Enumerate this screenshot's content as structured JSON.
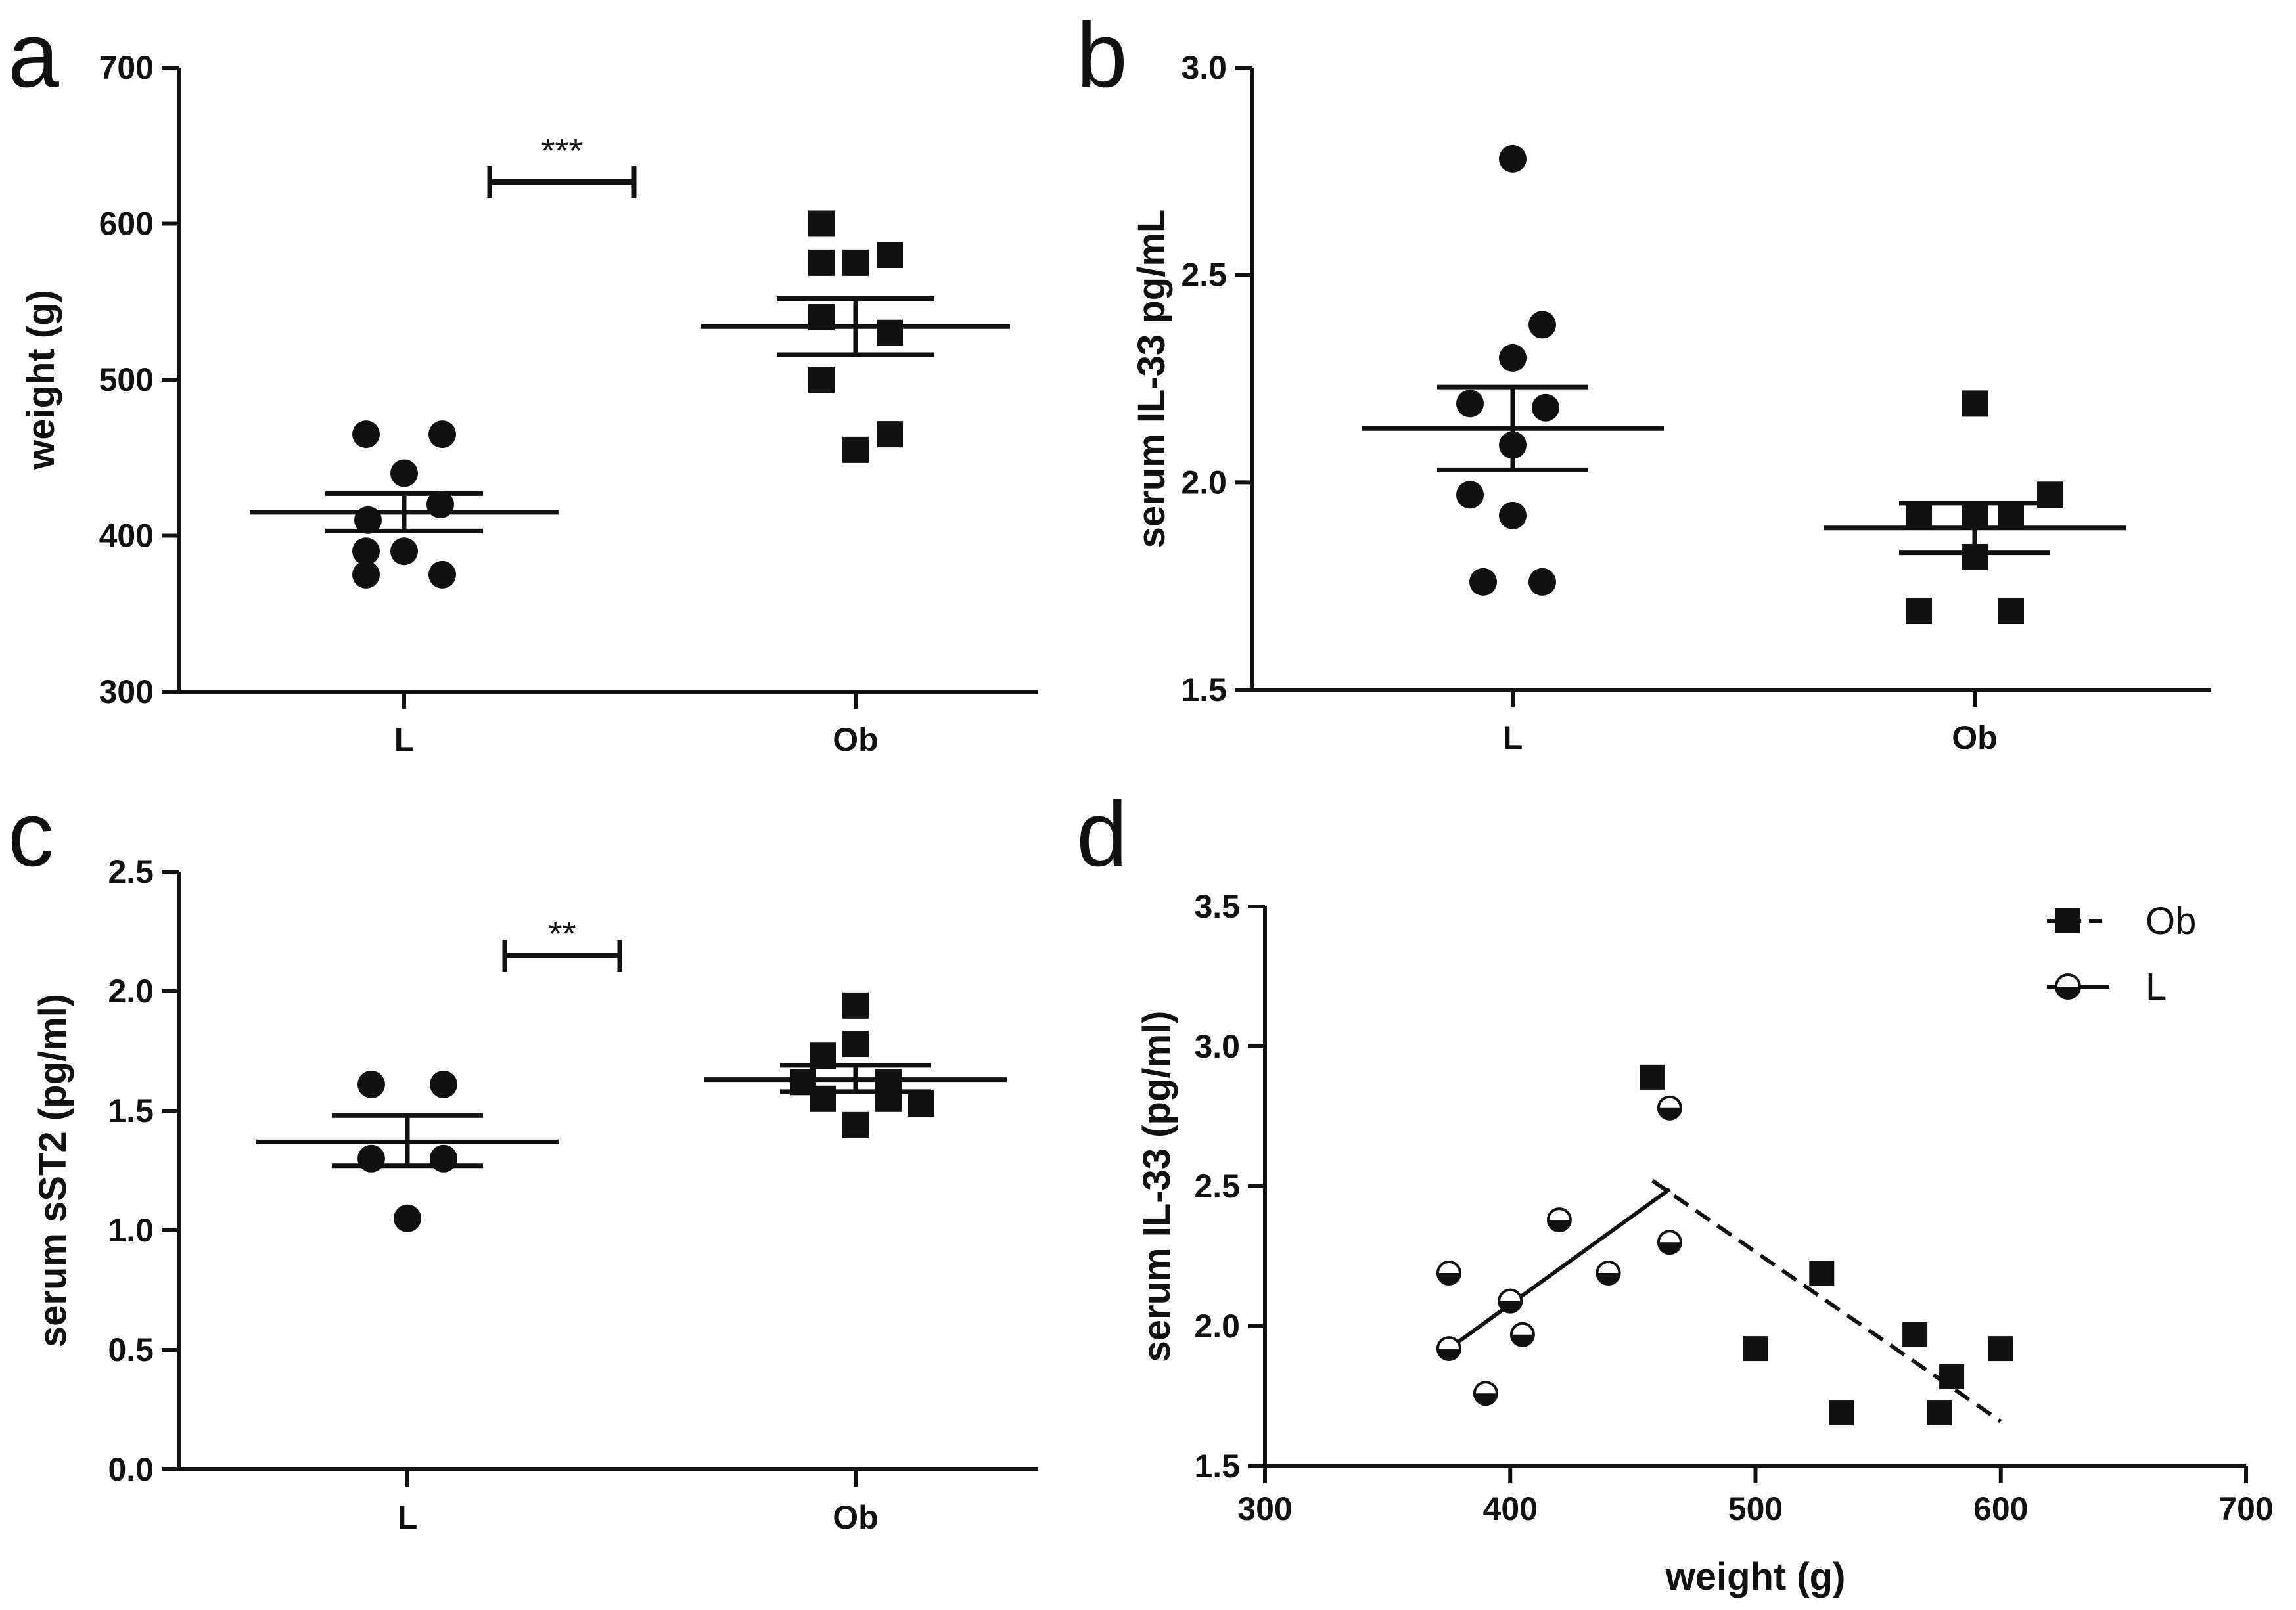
{
  "panels": {
    "a": "a",
    "b": "b",
    "c": "c",
    "d": "d"
  },
  "chart_data": [
    {
      "id": "a",
      "type": "scatter",
      "ylabel": "weight (g)",
      "ylim": [
        300,
        700
      ],
      "yticks": [
        300,
        400,
        500,
        600,
        700
      ],
      "categories": [
        "L",
        "Ob"
      ],
      "series": [
        {
          "category": "L",
          "marker": "circle",
          "values": [
            465,
            465,
            440,
            420,
            410,
            390,
            390,
            375,
            375
          ],
          "mean": 415,
          "sem": [
            403,
            427
          ]
        },
        {
          "category": "Ob",
          "marker": "square",
          "values": [
            600,
            580,
            575,
            575,
            540,
            530,
            500,
            465,
            455
          ],
          "mean": 534,
          "sem": [
            516,
            552
          ]
        }
      ],
      "significance": {
        "label": "***",
        "between": [
          "L",
          "Ob"
        ]
      }
    },
    {
      "id": "b",
      "type": "scatter",
      "ylabel": "serum IL-33 pg/mL",
      "ylim": [
        1.5,
        3.0
      ],
      "yticks": [
        "1.5",
        "2.0",
        "2.5",
        "3.0"
      ],
      "categories": [
        "L",
        "Ob"
      ],
      "series": [
        {
          "category": "L",
          "marker": "circle",
          "values": [
            2.78,
            2.38,
            2.3,
            2.19,
            2.18,
            2.09,
            1.97,
            1.92,
            1.76,
            1.76
          ],
          "mean": 2.13,
          "sem": [
            2.03,
            2.23
          ]
        },
        {
          "category": "Ob",
          "marker": "square",
          "values": [
            2.19,
            1.97,
            1.92,
            1.92,
            1.92,
            1.82,
            1.69,
            1.69
          ],
          "mean": 1.89,
          "sem": [
            1.83,
            1.95
          ]
        }
      ]
    },
    {
      "id": "c",
      "type": "scatter",
      "ylabel": "serum sST2 (pg/ml)",
      "ylim": [
        0,
        2.5
      ],
      "yticks": [
        "0.0",
        "0.5",
        "1.0",
        "1.5",
        "2.0",
        "2.5"
      ],
      "categories": [
        "L",
        "Ob"
      ],
      "series": [
        {
          "category": "L",
          "marker": "circle",
          "values": [
            1.61,
            1.61,
            1.3,
            1.3,
            1.05
          ],
          "mean": 1.37,
          "sem": [
            1.27,
            1.48
          ]
        },
        {
          "category": "Ob",
          "marker": "square",
          "values": [
            1.94,
            1.78,
            1.73,
            1.62,
            1.62,
            1.55,
            1.55,
            1.53,
            1.44
          ],
          "mean": 1.63,
          "sem": [
            1.58,
            1.69
          ]
        }
      ],
      "significance": {
        "label": "**",
        "between": [
          "L",
          "Ob"
        ]
      }
    },
    {
      "id": "d",
      "type": "scatter",
      "xlabel": "weight (g)",
      "ylabel": "serum IL-33 (pg/ml)",
      "xlim": [
        300,
        700
      ],
      "ylim": [
        1.5,
        3.5
      ],
      "xticks": [
        300,
        400,
        500,
        600,
        700
      ],
      "yticks": [
        "1.5",
        "2.0",
        "2.5",
        "3.0",
        "3.5"
      ],
      "legend": {
        "position": "top-right"
      },
      "series": [
        {
          "name": "Ob",
          "marker": "square",
          "line": "dashed",
          "points": [
            [
              458,
              2.89
            ],
            [
              500,
              1.92
            ],
            [
              527,
              2.19
            ],
            [
              535,
              1.69
            ],
            [
              565,
              1.97
            ],
            [
              575,
              1.69
            ],
            [
              580,
              1.82
            ],
            [
              600,
              1.92
            ]
          ],
          "fit": [
            [
              458,
              2.52
            ],
            [
              600,
              1.66
            ]
          ]
        },
        {
          "name": "L",
          "marker": "half-circle",
          "line": "solid",
          "points": [
            [
              375,
              2.19
            ],
            [
              375,
              1.92
            ],
            [
              390,
              1.76
            ],
            [
              400,
              2.09
            ],
            [
              405,
              1.97
            ],
            [
              420,
              2.38
            ],
            [
              440,
              2.19
            ],
            [
              465,
              2.78
            ],
            [
              465,
              2.3
            ]
          ],
          "fit": [
            [
              375,
              1.92
            ],
            [
              465,
              2.49
            ]
          ]
        }
      ]
    }
  ]
}
